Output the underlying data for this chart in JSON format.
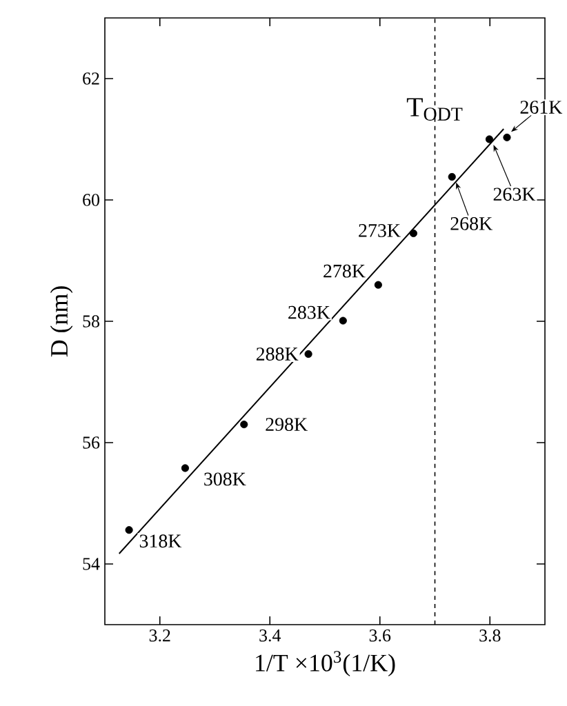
{
  "chart_data": {
    "type": "scatter",
    "xlabel": "1/T ×10$^{3}$(1/K)",
    "ylabel": "D (nm)",
    "xlim": [
      3.1,
      3.9
    ],
    "ylim": [
      53,
      63
    ],
    "xticks": [
      3.2,
      3.4,
      3.6,
      3.8
    ],
    "yticks": [
      54,
      56,
      58,
      60,
      62
    ],
    "grid": false,
    "series": [
      {
        "color": "#000000",
        "marker": "circle",
        "x": [
          3.144,
          3.246,
          3.353,
          3.47,
          3.533,
          3.597,
          3.661,
          3.731,
          3.799,
          3.831
        ],
        "values": [
          54.56,
          55.58,
          56.3,
          57.46,
          58.01,
          58.6,
          59.45,
          60.38,
          61.0,
          61.03
        ]
      },
      {
        "type": "line",
        "color": "#000000",
        "marker": "none",
        "line_style": "solid",
        "x": [
          3.126,
          3.825
        ],
        "values": [
          54.17,
          61.17
        ]
      }
    ],
    "ref_lines": [
      {
        "axis": "x",
        "value": 3.7,
        "label": "T$_{ODT}$",
        "line_style": "dashed",
        "color": "#000000"
      }
    ],
    "annotations": [
      {
        "text": "318K",
        "x": 3.144,
        "y": 54.56
      },
      {
        "text": "308K",
        "x": 3.246,
        "y": 55.58
      },
      {
        "text": "298K",
        "x": 3.353,
        "y": 56.3
      },
      {
        "text": "288K",
        "x": 3.47,
        "y": 57.46
      },
      {
        "text": "283K",
        "x": 3.533,
        "y": 58.01
      },
      {
        "text": "278K",
        "x": 3.597,
        "y": 58.6
      },
      {
        "text": "273K",
        "x": 3.661,
        "y": 59.45
      },
      {
        "text": "268K",
        "x": 3.731,
        "y": 60.38
      },
      {
        "text": "263K",
        "x": 3.799,
        "y": 61.0
      },
      {
        "text": "261K",
        "x": 3.831,
        "y": 61.03
      }
    ]
  }
}
